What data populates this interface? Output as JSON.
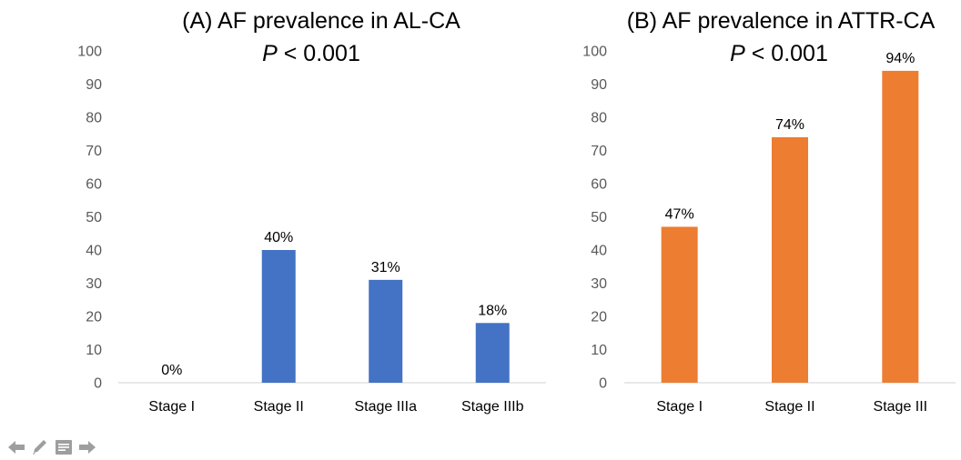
{
  "chart_data": [
    {
      "type": "bar",
      "title": "(A) AF prevalence in AL-CA",
      "subtitle_prefix": "P",
      "subtitle_rest": " < 0.001",
      "categories": [
        "Stage I",
        "Stage II",
        "Stage IIIa",
        "Stage IIIb"
      ],
      "values": [
        0,
        40,
        31,
        18
      ],
      "data_labels": [
        "0%",
        "40%",
        "31%",
        "18%"
      ],
      "ylim": [
        0,
        100
      ],
      "yticks": [
        "0",
        "10",
        "20",
        "30",
        "40",
        "50",
        "60",
        "70",
        "80",
        "90",
        "100"
      ],
      "xlabel": "",
      "ylabel": "",
      "grid": false,
      "legend": "none",
      "color": "#4472C4"
    },
    {
      "type": "bar",
      "title": "(B) AF prevalence in ATTR-CA",
      "subtitle_prefix": "P",
      "subtitle_rest": " < 0.001",
      "categories": [
        "Stage I",
        "Stage II",
        "Stage III"
      ],
      "values": [
        47,
        74,
        94
      ],
      "data_labels": [
        "47%",
        "74%",
        "94%"
      ],
      "ylim": [
        0,
        100
      ],
      "yticks": [
        "0",
        "10",
        "20",
        "30",
        "40",
        "50",
        "60",
        "70",
        "80",
        "90",
        "100"
      ],
      "xlabel": "",
      "ylabel": "",
      "grid": false,
      "legend": "none",
      "color": "#ED7D31"
    }
  ],
  "toolbar": {
    "icons": [
      "arrow-left-icon",
      "pencil-icon",
      "menu-icon",
      "arrow-right-icon"
    ],
    "color": "#9E9E9E"
  }
}
